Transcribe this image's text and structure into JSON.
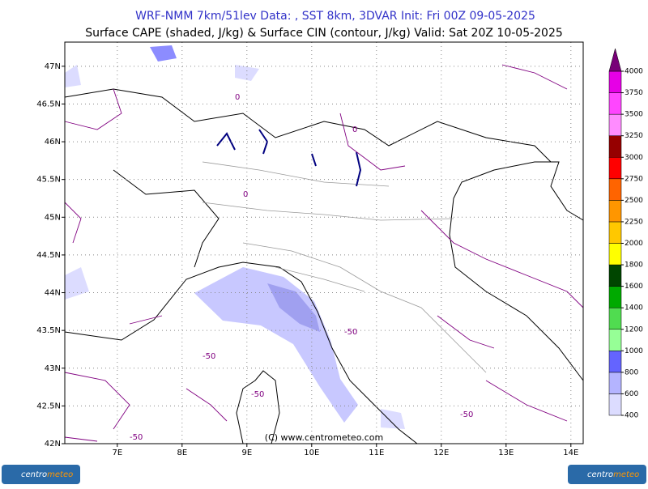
{
  "header": {
    "title": "WRF-NMM 7km/51lev  Data: , SST 8km, 3DVAR  Init: Fri 00Z 09-05-2025",
    "subtitle": "Surface CAPE (shaded, J/kg) & Surface CIN (contour, J/kg)  Valid: Sat 20Z 10-05-2025"
  },
  "map": {
    "xlim": [
      6.19,
      14.19
    ],
    "ylim": [
      42,
      47.32
    ],
    "xticks": [
      {
        "value": 7,
        "label": "7E"
      },
      {
        "value": 8,
        "label": "8E"
      },
      {
        "value": 9,
        "label": "9E"
      },
      {
        "value": 10,
        "label": "10E"
      },
      {
        "value": 11,
        "label": "11E"
      },
      {
        "value": 12,
        "label": "12E"
      },
      {
        "value": 13,
        "label": "13E"
      },
      {
        "value": 14,
        "label": "14E"
      }
    ],
    "yticks": [
      {
        "value": 42,
        "label": "42N"
      },
      {
        "value": 42.5,
        "label": "42.5N"
      },
      {
        "value": 43,
        "label": "43N"
      },
      {
        "value": 43.5,
        "label": "43.5N"
      },
      {
        "value": 44,
        "label": "44N"
      },
      {
        "value": 44.5,
        "label": "44.5N"
      },
      {
        "value": 45,
        "label": "45N"
      },
      {
        "value": 45.5,
        "label": "45.5N"
      },
      {
        "value": 46,
        "label": "46N"
      },
      {
        "value": 46.5,
        "label": "46.5N"
      },
      {
        "value": 47,
        "label": "47N"
      }
    ],
    "grid": true,
    "contour_labels": [
      "0",
      "0",
      "0",
      "-50",
      "-50",
      "-50",
      "-50",
      "-50"
    ],
    "copyright": "(C) www.centrometeo.com"
  },
  "colorbar": {
    "levels": [
      400,
      600,
      800,
      1000,
      1200,
      1400,
      1600,
      1800,
      2000,
      2250,
      2500,
      2750,
      3000,
      3250,
      3500,
      3750,
      4000
    ],
    "colors": [
      "#dcdcff",
      "#b4b4ff",
      "#6464ff",
      "#96ff96",
      "#50dc50",
      "#00aa00",
      "#004600",
      "#ffff00",
      "#ffc800",
      "#ff9600",
      "#ff6400",
      "#ff0000",
      "#960000",
      "#ff8cff",
      "#ff46ff",
      "#e600e6"
    ],
    "over_color": "#780078"
  },
  "logo": {
    "parts": [
      "centro",
      "meteo"
    ]
  }
}
